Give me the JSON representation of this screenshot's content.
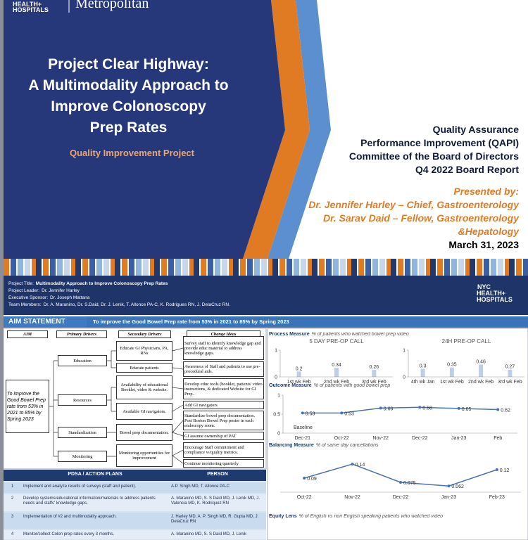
{
  "header": {
    "logo": [
      "HEALTH+",
      "HOSPITALS"
    ],
    "site": "Metropolitan",
    "title": [
      "Project Clear Highway:",
      "A Multimodality Approach to",
      "Improve Colonoscopy",
      "Prep Rates"
    ],
    "subtitle": "Quality Improvement Project",
    "report": [
      "Quality Assurance",
      "Performance Improvement (QAPI)",
      "Committee of the Board of Directors",
      "Q4 2022 Board Report"
    ],
    "presented_by": "Presented by:",
    "presenters": [
      "Dr. Jennifer Harley – Chief, Gastroenterology",
      "Dr. Sarav Daid – Fellow, Gastroenterology",
      "&Hepatology"
    ],
    "date": "March 31, 2023"
  },
  "poster": {
    "info": [
      {
        "label": "Project Title:",
        "value": "Multimodality Approach to Improve Colonoscopy Prep Rates"
      },
      {
        "label": "Project Leader:",
        "value": "Dr. Jennifer Harley"
      },
      {
        "label": "Executive Sponsor:",
        "value": "Dr. Joseph Mattana"
      },
      {
        "label": "Team Members:",
        "value": "Dr. A. Maranino, Dr. S.Daid, Dr. J. Lenik, T. Allonce PA-C, K. Rodrigues RN, J. DelaCruz RN."
      }
    ],
    "logo": [
      "NYC",
      "HEALTH+",
      "HOSPITALS"
    ],
    "aim_label": "AIM STATEMENT",
    "aim": "To improve the Good Bowel Prep rate from 53% in 2021 to 85% by Spring 2023"
  },
  "drivers": {
    "headers": [
      "AIM",
      "Primary Drivers",
      "Secondary Drivers",
      "Change Ideas"
    ],
    "aim": "To improve the Good Bowel Prep rate from 53% in 2021 to 85% by Spring 2023",
    "primary": [
      "Education",
      "Resources",
      "Standardization",
      "Monitoring"
    ],
    "secondary": [
      "Educate GI Physicians, PA, RNs",
      "Educate patients",
      "Availability of educational Booklet, video & website.",
      "Available GI navigators.",
      "Bowel prep documentation.",
      "Monitoring opportunities for improvement"
    ],
    "changes": [
      "Survey staff to identify knowledge gap and provide educ material to address knowledge gaps.",
      "Awareness of Staff and patients to use pre-procedural aids.",
      "Develop educ tools (booklet, patients' video instructions, & dedicated Website for GI Prep.",
      "Add GI navigators",
      "Standardize bowel prep documentation. Post Boston Bowel Prep poster in each endoscopy room.",
      "GI assume ownership of PAT",
      "Encourage Staff commitment and compliance w/quality metrics.",
      "Continue monitoring quarterly"
    ]
  },
  "table": {
    "headers": [
      "PDSA / ACTION PLANS",
      "PERSON"
    ],
    "rows": [
      [
        1,
        "Implement and analyze results of surveys (staff and patient).",
        "A.P. Singh MD, T. Allonce PA-C"
      ],
      [
        2,
        "Develop systems/educational information/materials to address patients needs and staffs' knowledge gaps.",
        "A. Maranino MD, S. S Daid MD, J. Lenik MD, J. Valencia MD, K. Rodriquez RN"
      ],
      [
        3,
        "Implementation of #2 and multimodality approach.",
        "J. Harley MD, A. P. Singh MD, R. Gupta MD, J. DelaCruz RN"
      ],
      [
        4,
        "Monitor/collect Colon prep rates every 3 months.",
        "A. Maranino MD, S. S Daid MD, J. Lenik"
      ]
    ]
  },
  "measures": [
    {
      "label": "Process Measure",
      "text": "% of patients who watched bowel prep video"
    },
    {
      "label": "Outcome Measure",
      "text": "% of patients with good bowel prep"
    },
    {
      "label": "Balancing Measure",
      "text": "% of same day cancellations"
    },
    {
      "label": "Equity Lens",
      "text": "% of English vs non English speaking patients who watched video"
    }
  ],
  "chart_data": [
    {
      "type": "bar",
      "title": "5 DAY PRE-OP CALL",
      "categories": [
        "1st wk Feb",
        "2nd wk Feb",
        "3rd wk Feb"
      ],
      "values": [
        0.2,
        0.34,
        0.26
      ],
      "color": "#4a72b0",
      "ylim": [
        0,
        1
      ],
      "yticks": [
        0,
        1
      ]
    },
    {
      "type": "bar",
      "title": "24H PRE-OP CALL",
      "categories": [
        "4th wk Jan",
        "1st wk Feb",
        "2nd wk Feb",
        "3rd wk Feb"
      ],
      "values": [
        0.3,
        0.35,
        0.46,
        0.27
      ],
      "color": "#4a72b0",
      "ylim": [
        0,
        1
      ],
      "yticks": [
        0,
        1
      ]
    },
    {
      "type": "line",
      "categories": [
        "Dec-21",
        "Oct-22",
        "Nov-22",
        "Dec-22",
        "Jan-23",
        "Feb"
      ],
      "values": [
        0.53,
        0.53,
        0.66,
        0.68,
        0.65,
        0.62
      ],
      "color": "#4a72b0",
      "ylim": [
        0,
        1
      ],
      "yticks": [
        0,
        0.5,
        1
      ],
      "annotation": "Baseline"
    },
    {
      "type": "line",
      "categories": [
        "Oct-22",
        "Nov-22",
        "Dec-22",
        "Jan-23",
        "Feb-23"
      ],
      "values": [
        0.09,
        0.14,
        0.075,
        0.062,
        0.12
      ],
      "color": "#4a72b0",
      "ylim": [
        0.04,
        0.16
      ]
    }
  ]
}
